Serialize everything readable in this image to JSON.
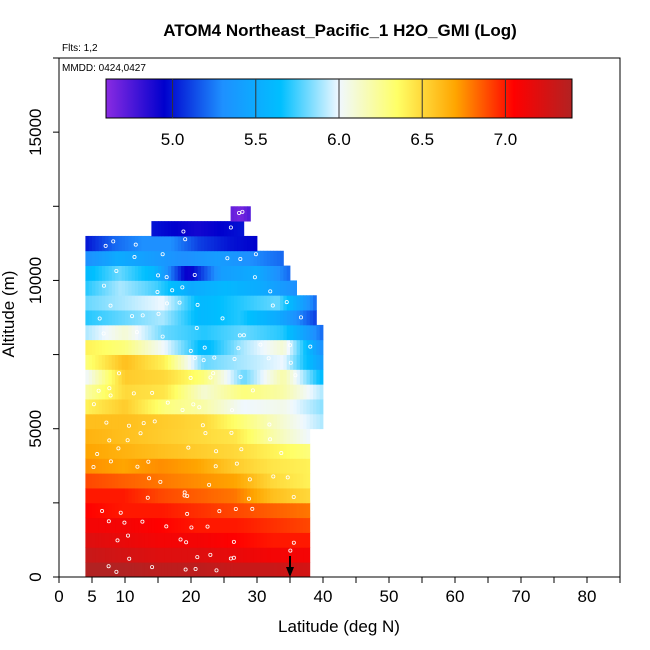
{
  "chart_data": {
    "type": "heatmap",
    "title": "ATOM4 Northeast_Pacific_1 H2O_GMI (Log)",
    "flights_label": "Flts: 1,2",
    "date_label": "MMDD: 0424,0427",
    "xlabel": "Latitude (deg N)",
    "ylabel": "Altitude (m)",
    "xlim": [
      0,
      85
    ],
    "ylim": [
      0,
      17500
    ],
    "x_ticks": [
      0,
      5,
      10,
      20,
      30,
      40,
      50,
      60,
      70,
      80
    ],
    "x_tick_labels": [
      "0",
      "5",
      "10",
      "20",
      "30",
      "40",
      "50",
      "60",
      "70",
      "80"
    ],
    "y_ticks": [
      0,
      5000,
      10000,
      15000
    ],
    "y_tick_labels": [
      "0",
      "5000",
      "10000",
      "15000"
    ],
    "colorbar": {
      "min": 4.6,
      "max": 7.4,
      "ticks": [
        5.0,
        5.5,
        6.0,
        6.5,
        7.0
      ],
      "tick_labels": [
        "5.0",
        "5.5",
        "6.0",
        "6.5",
        "7.0"
      ],
      "colors": [
        "#8a2be2",
        "#0000cd",
        "#1e90ff",
        "#00bfff",
        "#f0f8ff",
        "#ffff66",
        "#ffa500",
        "#ff0000",
        "#b22222"
      ]
    },
    "layers": [
      {
        "alt": 250,
        "lat": [
          4,
          38
        ],
        "vals": [
          7.4,
          7.4,
          7.35,
          7.35,
          7.3,
          7.3,
          7.25
        ]
      },
      {
        "alt": 750,
        "lat": [
          4,
          38
        ],
        "vals": [
          7.3,
          7.25,
          7.2,
          7.2,
          7.15,
          7.1,
          7.1
        ]
      },
      {
        "alt": 1250,
        "lat": [
          4,
          38
        ],
        "vals": [
          7.2,
          7.15,
          7.1,
          7.1,
          7.05,
          7.0,
          7.0
        ]
      },
      {
        "alt": 1750,
        "lat": [
          4,
          38
        ],
        "vals": [
          7.1,
          7.1,
          7.05,
          7.0,
          7.0,
          6.95,
          6.9
        ]
      },
      {
        "alt": 2250,
        "lat": [
          4,
          38
        ],
        "vals": [
          7.05,
          7.0,
          7.0,
          6.95,
          6.9,
          6.85,
          6.8
        ]
      },
      {
        "alt": 2750,
        "lat": [
          4,
          38
        ],
        "vals": [
          7.0,
          7.0,
          6.9,
          6.85,
          6.8,
          6.6,
          6.5
        ]
      },
      {
        "alt": 3250,
        "lat": [
          4,
          38
        ],
        "vals": [
          6.9,
          6.85,
          6.8,
          6.75,
          6.7,
          6.5,
          6.4
        ]
      },
      {
        "alt": 3750,
        "lat": [
          4,
          38
        ],
        "vals": [
          6.75,
          6.7,
          6.75,
          6.7,
          6.55,
          6.45,
          6.4
        ]
      },
      {
        "alt": 4250,
        "lat": [
          4,
          38
        ],
        "vals": [
          6.7,
          6.65,
          6.6,
          6.55,
          6.5,
          6.4,
          6.3
        ]
      },
      {
        "alt": 4750,
        "lat": [
          4,
          38
        ],
        "vals": [
          6.65,
          6.6,
          6.55,
          6.5,
          6.45,
          6.2,
          6.0
        ]
      },
      {
        "alt": 5250,
        "lat": [
          4,
          40
        ],
        "vals": [
          6.6,
          6.6,
          6.55,
          6.5,
          6.3,
          6.1,
          5.9
        ]
      },
      {
        "alt": 5750,
        "lat": [
          4,
          40
        ],
        "vals": [
          6.4,
          6.55,
          6.3,
          6.2,
          6.0,
          6.05,
          5.85
        ]
      },
      {
        "alt": 6250,
        "lat": [
          4,
          40
        ],
        "vals": [
          6.2,
          6.5,
          6.45,
          6.1,
          6.3,
          6.2,
          5.9
        ]
      },
      {
        "alt": 6750,
        "lat": [
          4,
          40
        ],
        "vals": [
          6.0,
          6.55,
          6.5,
          6.3,
          5.8,
          6.2,
          5.6
        ]
      },
      {
        "alt": 7250,
        "lat": [
          4,
          40
        ],
        "vals": [
          6.3,
          6.6,
          6.4,
          5.8,
          5.9,
          6.0,
          5.4
        ]
      },
      {
        "alt": 7750,
        "lat": [
          4,
          40
        ],
        "vals": [
          6.4,
          6.3,
          6.0,
          5.6,
          5.9,
          6.1,
          5.3
        ]
      },
      {
        "alt": 8250,
        "lat": [
          4,
          40
        ],
        "vals": [
          5.9,
          6.1,
          5.8,
          5.7,
          5.8,
          5.7,
          5.2
        ]
      },
      {
        "alt": 8750,
        "lat": [
          4,
          39
        ],
        "vals": [
          5.7,
          5.8,
          5.9,
          5.6,
          5.7,
          5.5,
          5.1
        ]
      },
      {
        "alt": 9250,
        "lat": [
          4,
          39
        ],
        "vals": [
          5.8,
          5.9,
          6.0,
          5.6,
          5.7,
          5.8,
          5.2
        ]
      },
      {
        "alt": 9750,
        "lat": [
          4,
          36
        ],
        "vals": [
          5.7,
          5.9,
          5.75,
          5.5,
          5.6,
          5.5,
          5.3
        ]
      },
      {
        "alt": 10250,
        "lat": [
          4,
          35
        ],
        "vals": [
          5.6,
          5.8,
          5.6,
          4.9,
          5.4,
          5.5,
          5.2
        ]
      },
      {
        "alt": 10750,
        "lat": [
          4,
          34
        ],
        "vals": [
          5.3,
          5.5,
          5.4,
          5.3,
          5.4,
          5.3,
          5.2
        ]
      },
      {
        "alt": 11250,
        "lat": [
          4,
          30
        ],
        "vals": [
          5.0,
          5.2,
          5.3,
          5.3,
          5.1,
          5.0,
          4.95
        ]
      },
      {
        "alt": 11750,
        "lat": [
          14,
          28
        ],
        "vals": [
          5.0,
          4.95,
          4.9,
          4.95,
          5.0
        ]
      },
      {
        "alt": 12250,
        "lat": [
          26,
          29
        ],
        "vals": [
          4.7,
          4.65,
          4.75
        ]
      }
    ],
    "arrow_lat": 35
  }
}
